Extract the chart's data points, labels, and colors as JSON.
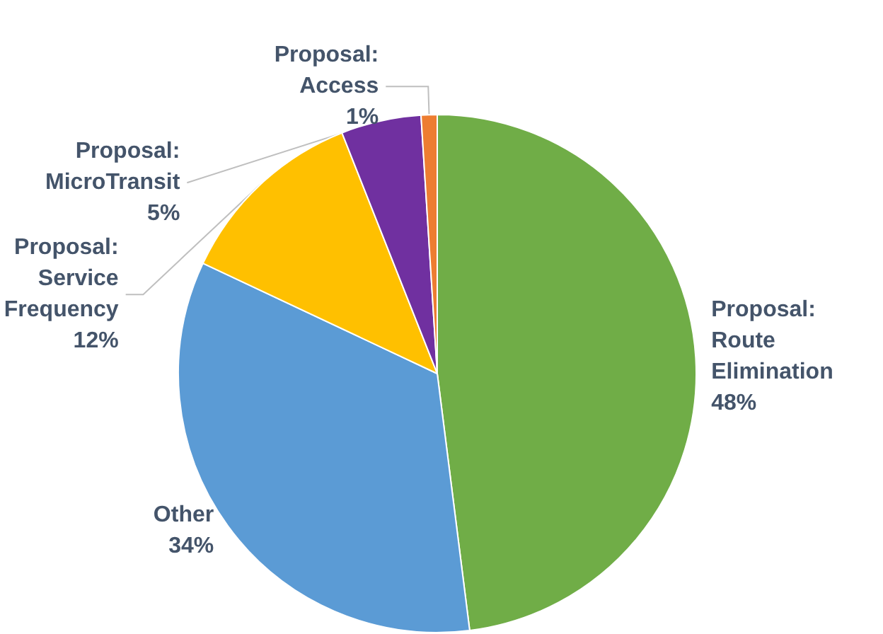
{
  "chart_data": {
    "type": "pie",
    "categories": [
      "Proposal:\nRoute\nElimination",
      "Other",
      "Proposal:\nService\nFrequency",
      "Proposal:\nMicroTransit",
      "Proposal:\nAccess"
    ],
    "values": [
      48,
      34,
      12,
      5,
      1
    ],
    "value_labels": [
      "48%",
      "34%",
      "12%",
      "5%",
      "1%"
    ],
    "colors": [
      "#70ad47",
      "#5b9bd5",
      "#ffc000",
      "#7030a0",
      "#ed7d31"
    ]
  }
}
